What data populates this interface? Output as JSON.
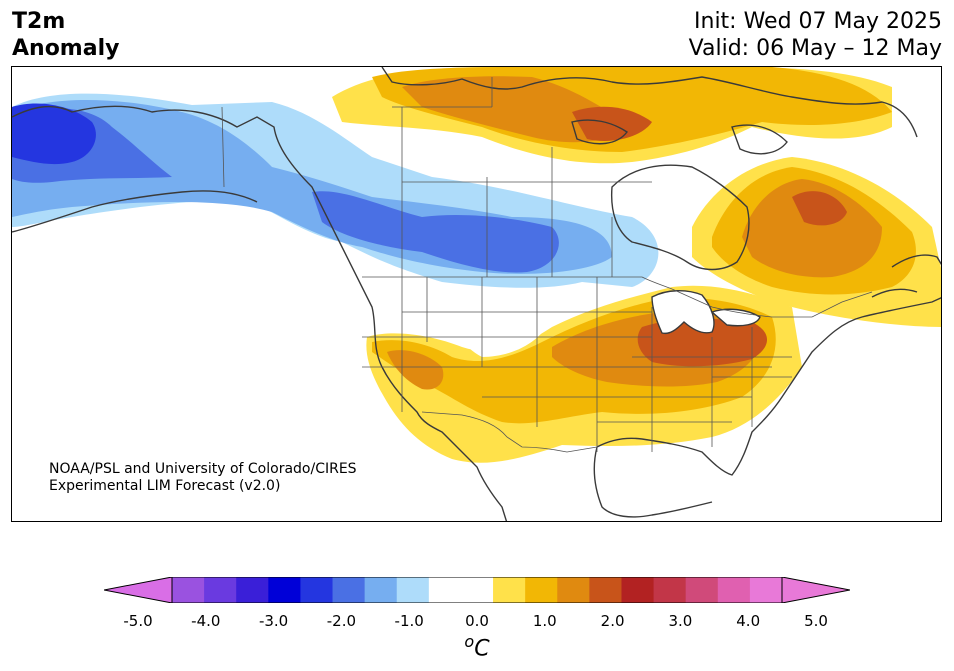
{
  "header": {
    "title_line1": "T2m",
    "title_line2": "Anomaly",
    "init": "Init: Wed 07 May 2025",
    "valid": "Valid: 06 May – 12 May"
  },
  "credit": {
    "line1": "NOAA/PSL and University of Colorado/CIRES",
    "line2": "Experimental LIM Forecast (v2.0)"
  },
  "colorbar": {
    "unit": "°C",
    "unit_base": "C",
    "unit_superscript": "o",
    "ticks": [
      "-5.0",
      "-4.0",
      "-3.0",
      "-2.0",
      "-1.0",
      "0.0",
      "1.0",
      "2.0",
      "3.0",
      "4.0",
      "5.0"
    ],
    "extend": "both",
    "colors": [
      "#9a52e0",
      "#6a3ae0",
      "#3a1fd8",
      "#0000d8",
      "#2436e0",
      "#4a70e4",
      "#76aef0",
      "#aedcfa",
      "#ffffff",
      "#ffffff",
      "#ffe14a",
      "#f2b705",
      "#e08a10",
      "#c8541a",
      "#b22222",
      "#c23648",
      "#d04a7a",
      "#e060b0",
      "#e879d8"
    ],
    "under_color": "#d96ee6",
    "over_color": "#e879d8"
  },
  "map": {
    "projection": "North America",
    "ocean_color": "#ffffff",
    "coastline_color": "#3a3a3a"
  }
}
